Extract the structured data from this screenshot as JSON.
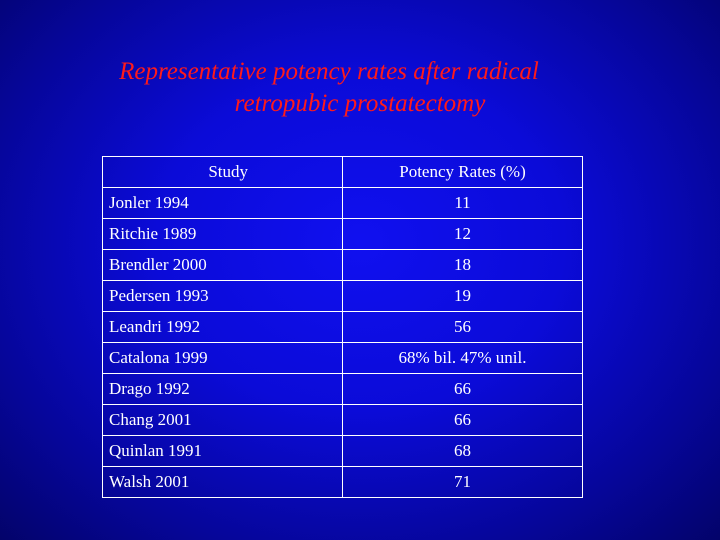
{
  "title": {
    "line1": "Representative potency rates after radical",
    "line2": "retropubic prostatectomy"
  },
  "table": {
    "headers": [
      "Study",
      "Potency Rates (%)"
    ],
    "rows": [
      {
        "study": "Jonler 1994",
        "rate": "11"
      },
      {
        "study": "Ritchie 1989",
        "rate": "12"
      },
      {
        "study": "Brendler 2000",
        "rate": "18"
      },
      {
        "study": "Pedersen 1993",
        "rate": "19"
      },
      {
        "study": "Leandri 1992",
        "rate": "56"
      },
      {
        "study": "Catalona 1999",
        "rate": "68% bil. 47% unil."
      },
      {
        "study": "Drago 1992",
        "rate": "66"
      },
      {
        "study": "Chang 2001",
        "rate": "66"
      },
      {
        "study": "Quinlan 1991",
        "rate": "68"
      },
      {
        "study": "Walsh 2001",
        "rate": "71"
      }
    ]
  },
  "colors": {
    "background": "#0b0bd8",
    "title": "#ff1a1a",
    "text": "#ffffff"
  }
}
